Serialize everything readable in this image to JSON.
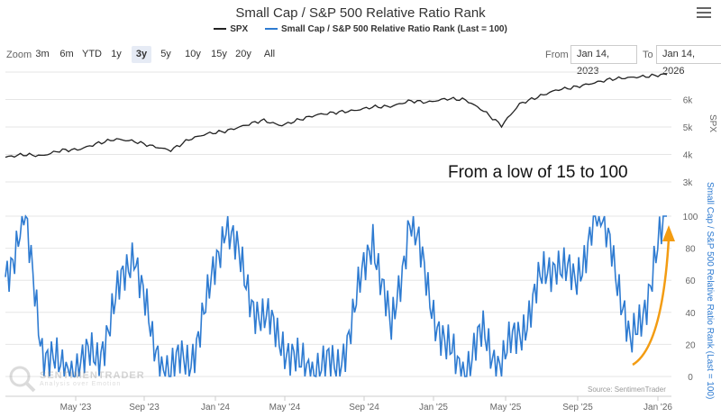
{
  "title": "Small Cap / S&P 500 Relative Ratio Rank",
  "legend": {
    "spx": "SPX",
    "rank": "Small Cap / S&P 500 Relative Ratio Rank (Last = 100)"
  },
  "zoom": {
    "label": "Zoom",
    "buttons": [
      "3m",
      "6m",
      "YTD",
      "1y",
      "3y",
      "5y",
      "10y",
      "15y",
      "20y",
      "All"
    ],
    "active": "3y"
  },
  "range": {
    "from_label": "From",
    "from_value": "Jan 14, 2023",
    "to_label": "To",
    "to_value": "Jan 14, 2026"
  },
  "annotation": "From a low of 15 to 100",
  "source": "Source: SentimenTrader",
  "watermark": {
    "brand": "SENTIMENTRADER",
    "tagline": "Analysis over Emotion"
  },
  "colors": {
    "spx": "#222222",
    "rank": "#2e7bd1",
    "arrow": "#f39c12",
    "grid": "#e6e6e6"
  },
  "chart_data": [
    {
      "type": "line",
      "name": "SPX",
      "ylabel": "SPX",
      "ylim": [
        3000,
        7000
      ],
      "yticks": [
        "3k",
        "4k",
        "5k",
        "6k"
      ],
      "x": [
        "2023-01",
        "2023-02",
        "2023-03",
        "2023-04",
        "2023-05",
        "2023-06",
        "2023-07",
        "2023-08",
        "2023-09",
        "2023-10",
        "2023-11",
        "2023-12",
        "2024-01",
        "2024-02",
        "2024-03",
        "2024-04",
        "2024-05",
        "2024-06",
        "2024-07",
        "2024-08",
        "2024-09",
        "2024-10",
        "2024-11",
        "2024-12",
        "2025-01",
        "2025-02",
        "2025-03",
        "2025-04",
        "2025-05",
        "2025-06",
        "2025-07",
        "2025-08",
        "2025-09",
        "2025-10",
        "2025-11",
        "2025-12",
        "2026-01"
      ],
      "values": [
        3900,
        4000,
        3950,
        4150,
        4180,
        4400,
        4560,
        4480,
        4300,
        4150,
        4550,
        4760,
        4850,
        5050,
        5250,
        5050,
        5270,
        5450,
        5530,
        5600,
        5730,
        5750,
        5950,
        5900,
        6030,
        6000,
        5600,
        5050,
        5850,
        6100,
        6350,
        6450,
        6600,
        6750,
        6800,
        6850,
        6920
      ]
    },
    {
      "type": "line",
      "name": "Small Cap / S&P 500 Relative Ratio Rank (Last = 100)",
      "ylabel": "Small Cap / S&P 500 Relative Ratio Rank (Last = 100)",
      "ylim": [
        0,
        100
      ],
      "yticks": [
        "0",
        "20",
        "40",
        "60",
        "80",
        "100"
      ],
      "xticks": [
        "May '23",
        "Sep '23",
        "Jan '24",
        "May '24",
        "Sep '24",
        "Jan '25",
        "May '25",
        "Sep '25",
        "Jan '26"
      ],
      "x": [
        "2023-01",
        "2023-02",
        "2023-03",
        "2023-04",
        "2023-05",
        "2023-06",
        "2023-07",
        "2023-08",
        "2023-09",
        "2023-10",
        "2023-11",
        "2023-12",
        "2024-01",
        "2024-02",
        "2024-03",
        "2024-04",
        "2024-05",
        "2024-06",
        "2024-07",
        "2024-08",
        "2024-09",
        "2024-10",
        "2024-11",
        "2024-12",
        "2025-01",
        "2025-02",
        "2025-03",
        "2025-04",
        "2025-05",
        "2025-06",
        "2025-07",
        "2025-08",
        "2025-09",
        "2025-10",
        "2025-11",
        "2025-12",
        "2026-01"
      ],
      "values": [
        62,
        100,
        20,
        2,
        8,
        12,
        45,
        82,
        18,
        4,
        10,
        45,
        100,
        60,
        35,
        25,
        4,
        8,
        3,
        40,
        90,
        25,
        100,
        55,
        15,
        5,
        25,
        8,
        28,
        55,
        75,
        55,
        100,
        85,
        15,
        55,
        100
      ],
      "last": 100,
      "annotation_low": 15
    }
  ]
}
